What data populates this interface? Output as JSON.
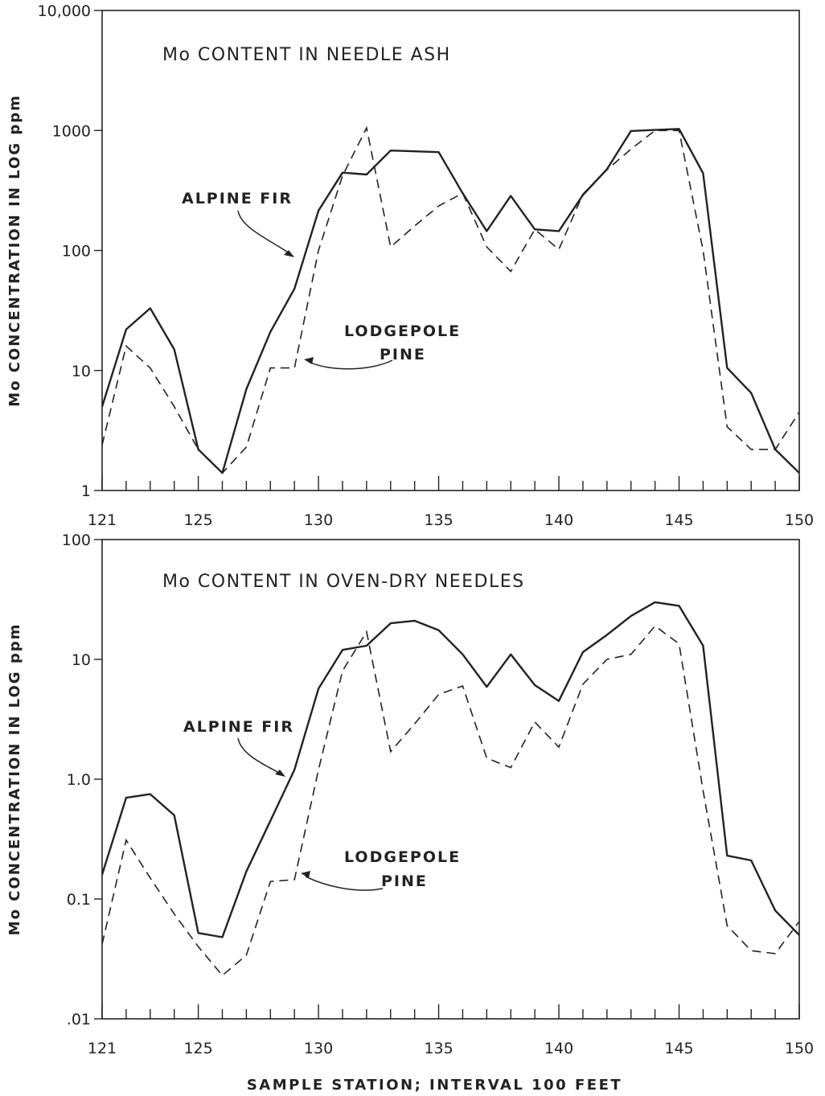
{
  "chart_data": [
    {
      "type": "line",
      "title": "Mo CONTENT IN NEEDLE ASH",
      "ylabel": "Mo CONCENTRATION IN LOG ppm",
      "xlabel": "",
      "y_scale": "log",
      "ylim": [
        1,
        10000
      ],
      "xlim": [
        121,
        150
      ],
      "yticks": [
        1,
        10,
        100,
        1000,
        10000
      ],
      "ytick_labels": [
        "1",
        "10",
        "100",
        "1000",
        "10,000"
      ],
      "xticks": [
        121,
        125,
        130,
        135,
        140,
        145,
        150
      ],
      "xtick_labels": [
        "121",
        "125",
        "130",
        "135",
        "140",
        "145",
        "150"
      ],
      "grid": false,
      "x": [
        121,
        122,
        123,
        124,
        125,
        126,
        127,
        128,
        129,
        130,
        131,
        132,
        133,
        134,
        135,
        136,
        137,
        138,
        139,
        140,
        141,
        142,
        143,
        144,
        145,
        146,
        147,
        148,
        149,
        150
      ],
      "series": [
        {
          "name": "ALPINE FIR",
          "style": "solid",
          "values": [
            5,
            22,
            33,
            15,
            2.2,
            1.4,
            7,
            21,
            48,
            215,
            445,
            430,
            680,
            670,
            660,
            300,
            145,
            285,
            150,
            145,
            290,
            475,
            990,
            1010,
            1030,
            440,
            10.5,
            6.5,
            2.2,
            1.4
          ]
        },
        {
          "name": "LODGEPOLE PINE",
          "style": "dashed",
          "values": [
            2.4,
            16,
            10.5,
            5,
            2.2,
            1.4,
            2.3,
            10.5,
            10.5,
            100,
            420,
            1050,
            107,
            160,
            235,
            300,
            107,
            67,
            150,
            102,
            295,
            470,
            700,
            1000,
            1000,
            100,
            3.4,
            2.2,
            2.2,
            4.5
          ]
        }
      ],
      "annotations": [
        {
          "text": "ALPINE FIR",
          "target_series": "ALPINE FIR"
        },
        {
          "text_lines": [
            "LODGEPOLE",
            "PINE"
          ],
          "target_series": "LODGEPOLE PINE"
        }
      ]
    },
    {
      "type": "line",
      "title": "Mo CONTENT IN OVEN-DRY NEEDLES",
      "ylabel": "Mo CONCENTRATION IN LOG ppm",
      "xlabel": "SAMPLE STATION; INTERVAL 100 FEET",
      "y_scale": "log",
      "ylim": [
        0.01,
        100
      ],
      "xlim": [
        121,
        150
      ],
      "yticks": [
        0.01,
        0.1,
        1,
        10,
        100
      ],
      "ytick_labels": [
        ".01",
        "0.1",
        "1.0",
        "10",
        "100"
      ],
      "xticks": [
        121,
        125,
        130,
        135,
        140,
        145,
        150
      ],
      "xtick_labels": [
        "121",
        "125",
        "130",
        "135",
        "140",
        "145",
        "150"
      ],
      "grid": false,
      "x": [
        121,
        122,
        123,
        124,
        125,
        126,
        127,
        128,
        129,
        130,
        131,
        132,
        133,
        134,
        135,
        136,
        137,
        138,
        139,
        140,
        141,
        142,
        143,
        144,
        145,
        146,
        147,
        148,
        149,
        150
      ],
      "series": [
        {
          "name": "ALPINE FIR",
          "style": "solid",
          "values": [
            0.16,
            0.7,
            0.75,
            0.5,
            0.052,
            0.048,
            0.17,
            0.45,
            1.2,
            5.7,
            12,
            13,
            20,
            21,
            17.5,
            11,
            5.9,
            11,
            6.1,
            4.5,
            11.5,
            16,
            23,
            30,
            28,
            13,
            0.23,
            0.21,
            0.08,
            0.05
          ]
        },
        {
          "name": "LODGEPOLE PINE",
          "style": "dashed",
          "values": [
            0.042,
            0.31,
            0.15,
            0.075,
            0.04,
            0.023,
            0.034,
            0.14,
            0.145,
            1.2,
            8,
            17,
            1.7,
            2.9,
            5.1,
            6,
            1.5,
            1.25,
            3,
            1.85,
            6.2,
            10,
            11,
            19,
            13.5,
            0.8,
            0.06,
            0.037,
            0.035,
            0.065
          ]
        }
      ],
      "annotations": [
        {
          "text": "ALPINE FIR",
          "target_series": "ALPINE FIR"
        },
        {
          "text_lines": [
            "LODGEPOLE",
            "PINE"
          ],
          "target_series": "LODGEPOLE PINE"
        }
      ]
    }
  ]
}
